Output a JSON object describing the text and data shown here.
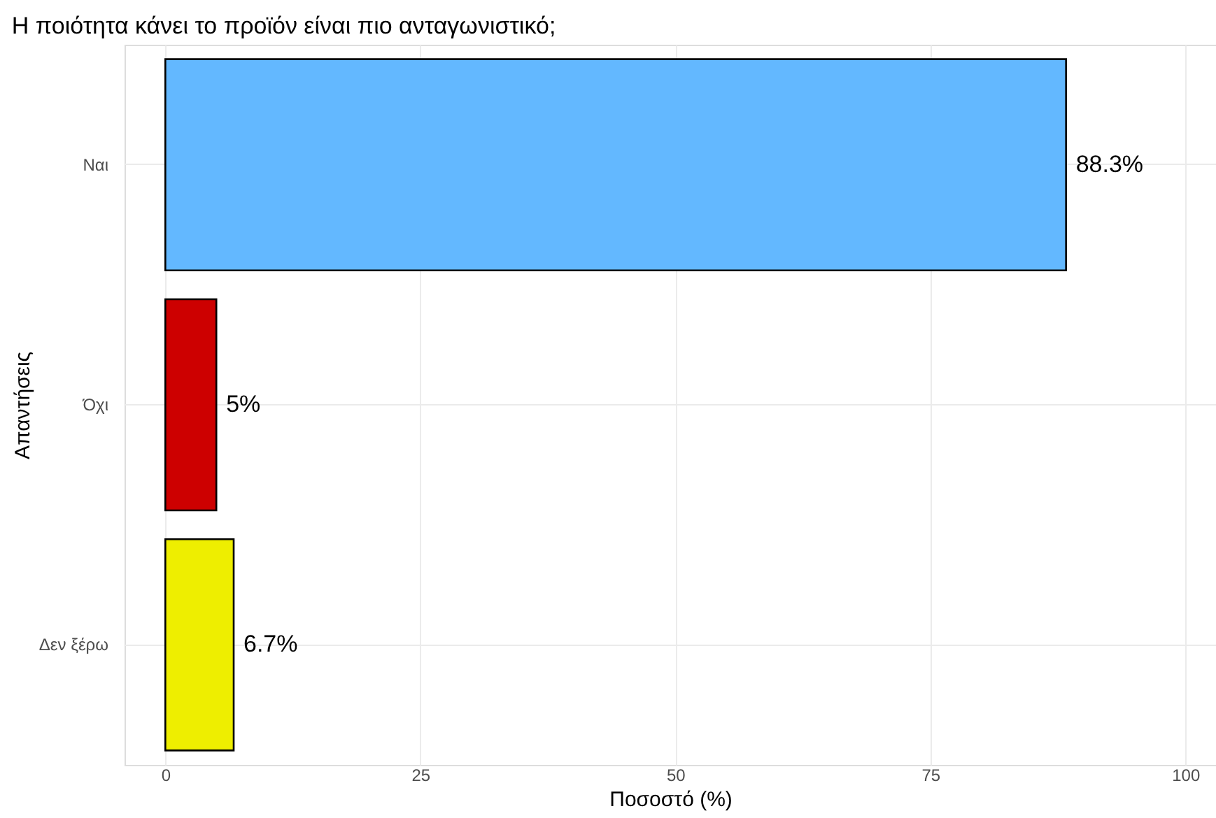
{
  "chart_data": {
    "type": "bar",
    "orientation": "horizontal",
    "title": "Η ποιότητα κάνει το προϊόν είναι πιο ανταγωνιστικό;",
    "xlabel": "Ποσοστό (%)",
    "ylabel": "Απαντήσεις",
    "categories": [
      "Ναι",
      "Όχι",
      "Δεν ξέρω"
    ],
    "values": [
      88.3,
      5,
      6.7
    ],
    "colors": [
      "#63b8ff",
      "#cd0000",
      "#eeee00"
    ],
    "value_labels": [
      "88.3%",
      "5%",
      "6.7%"
    ],
    "xlim": [
      -4,
      103
    ],
    "xticks": [
      0,
      25,
      50,
      75,
      100
    ],
    "grid": true
  }
}
